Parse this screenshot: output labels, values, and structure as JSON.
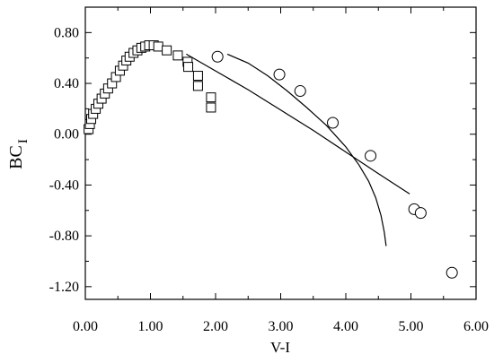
{
  "chart_data": {
    "type": "scatter",
    "xlabel": "V-I",
    "ylabel": "BC",
    "ylabel_sub": "I",
    "xlim": [
      0,
      6
    ],
    "ylim": [
      -1.3,
      1.0
    ],
    "x_ticks": [
      {
        "v": 0,
        "label": "0.00"
      },
      {
        "v": 1,
        "label": "1.00"
      },
      {
        "v": 2,
        "label": "2.00"
      },
      {
        "v": 3,
        "label": "3.00"
      },
      {
        "v": 4,
        "label": "4.00"
      },
      {
        "v": 5,
        "label": "5.00"
      },
      {
        "v": 6,
        "label": "6.00"
      }
    ],
    "y_ticks": [
      {
        "v": 0.8,
        "label": "0.80"
      },
      {
        "v": 0.4,
        "label": "0.40"
      },
      {
        "v": 0.0,
        "label": "0.00"
      },
      {
        "v": -0.4,
        "label": "-0.40"
      },
      {
        "v": -0.8,
        "label": "-0.80"
      },
      {
        "v": -1.2,
        "label": "-1.20"
      }
    ],
    "grid": false,
    "series": [
      {
        "marker": "square",
        "points": [
          [
            0.05,
            0.04
          ],
          [
            0.07,
            0.08
          ],
          [
            0.09,
            0.12
          ],
          [
            0.12,
            0.16
          ],
          [
            0.16,
            0.2
          ],
          [
            0.2,
            0.24
          ],
          [
            0.25,
            0.28
          ],
          [
            0.3,
            0.32
          ],
          [
            0.35,
            0.36
          ],
          [
            0.41,
            0.4
          ],
          [
            0.47,
            0.45
          ],
          [
            0.53,
            0.5
          ],
          [
            0.58,
            0.54
          ],
          [
            0.63,
            0.58
          ],
          [
            0.68,
            0.61
          ],
          [
            0.74,
            0.64
          ],
          [
            0.8,
            0.66
          ],
          [
            0.86,
            0.68
          ],
          [
            0.92,
            0.69
          ],
          [
            0.98,
            0.7
          ],
          [
            1.05,
            0.7
          ],
          [
            1.12,
            0.69
          ],
          [
            1.25,
            0.66
          ],
          [
            1.42,
            0.62
          ],
          [
            1.57,
            0.57
          ],
          [
            1.58,
            0.53
          ],
          [
            1.73,
            0.46
          ],
          [
            1.73,
            0.38
          ],
          [
            1.93,
            0.29
          ],
          [
            1.93,
            0.21
          ]
        ]
      },
      {
        "marker": "circle",
        "points": [
          [
            2.03,
            0.61
          ],
          [
            2.98,
            0.47
          ],
          [
            3.3,
            0.34
          ],
          [
            3.8,
            0.09
          ],
          [
            4.38,
            -0.17
          ],
          [
            5.05,
            -0.59
          ],
          [
            5.15,
            -0.62
          ],
          [
            5.63,
            -1.09
          ]
        ]
      }
    ],
    "lines": [
      {
        "points": [
          [
            1.55,
            0.63
          ],
          [
            2.5,
            0.35
          ],
          [
            3.0,
            0.19
          ],
          [
            3.5,
            0.03
          ],
          [
            4.0,
            -0.14
          ],
          [
            4.5,
            -0.31
          ],
          [
            4.98,
            -0.47
          ]
        ]
      },
      {
        "points": [
          [
            2.18,
            0.63
          ],
          [
            2.5,
            0.56
          ],
          [
            2.8,
            0.46
          ],
          [
            3.1,
            0.34
          ],
          [
            3.4,
            0.21
          ],
          [
            3.7,
            0.07
          ],
          [
            4.0,
            -0.1
          ],
          [
            4.2,
            -0.24
          ],
          [
            4.35,
            -0.37
          ],
          [
            4.46,
            -0.5
          ],
          [
            4.54,
            -0.64
          ],
          [
            4.59,
            -0.77
          ],
          [
            4.62,
            -0.88
          ]
        ]
      }
    ]
  }
}
